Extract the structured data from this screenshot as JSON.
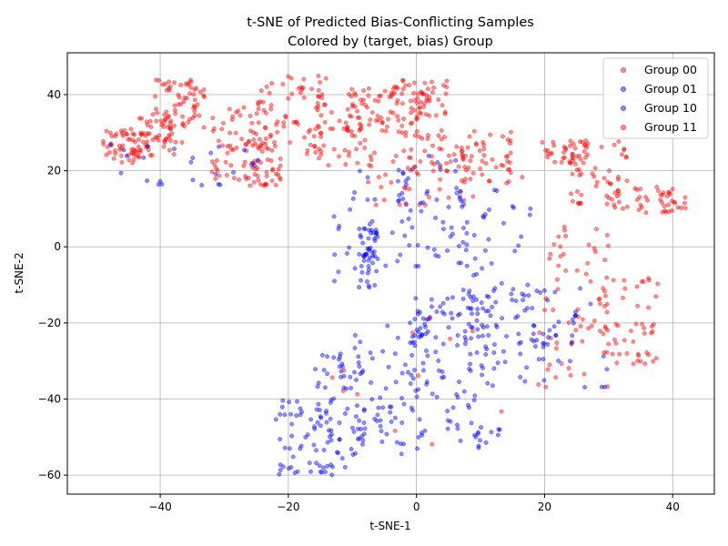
{
  "chart_data": {
    "type": "scatter",
    "title_line1": "t-SNE of Predicted Bias-Conflicting Samples",
    "title_line2": "Colored by (target, bias) Group",
    "xlabel": "t-SNE-1",
    "ylabel": "t-SNE-2",
    "xlim": [
      -54.5,
      46.5
    ],
    "ylim": [
      -65,
      51
    ],
    "xticks": [
      -40,
      -20,
      0,
      20,
      40
    ],
    "yticks": [
      -60,
      -40,
      -20,
      0,
      20,
      40
    ],
    "grid": true,
    "legend_position": "top-right",
    "point_alpha": 0.45,
    "series": [
      {
        "name": "Group 00",
        "color": "#ff0000"
      },
      {
        "name": "Group 01",
        "color": "#0000ff"
      },
      {
        "name": "Group 10",
        "color": "#0000ff"
      },
      {
        "name": "Group 11",
        "color": "#ff0000"
      }
    ],
    "clusters": [
      {
        "series": 0,
        "n": 55,
        "x": [
          -49,
          -42
        ],
        "y": [
          22,
          31
        ]
      },
      {
        "series": 0,
        "n": 50,
        "x": [
          -44,
          -36
        ],
        "y": [
          24,
          35
        ]
      },
      {
        "series": 0,
        "n": 60,
        "x": [
          -41,
          -33
        ],
        "y": [
          31,
          44
        ]
      },
      {
        "series": 0,
        "n": 55,
        "x": [
          -32,
          -24
        ],
        "y": [
          17,
          37
        ]
      },
      {
        "series": 0,
        "n": 45,
        "x": [
          -27,
          -21
        ],
        "y": [
          16,
          30
        ]
      },
      {
        "series": 0,
        "n": 70,
        "x": [
          -26,
          -14
        ],
        "y": [
          24,
          45
        ]
      },
      {
        "series": 0,
        "n": 45,
        "x": [
          -16,
          -6
        ],
        "y": [
          21,
          38
        ]
      },
      {
        "series": 0,
        "n": 70,
        "x": [
          -11,
          1
        ],
        "y": [
          30,
          43
        ]
      },
      {
        "series": 0,
        "n": 45,
        "x": [
          -4,
          5
        ],
        "y": [
          34,
          44
        ]
      },
      {
        "series": 0,
        "n": 40,
        "x": [
          -2,
          8
        ],
        "y": [
          19,
          31
        ]
      },
      {
        "series": 0,
        "n": 45,
        "x": [
          7,
          15
        ],
        "y": [
          16,
          31
        ]
      },
      {
        "series": 0,
        "n": 35,
        "x": [
          19,
          27
        ],
        "y": [
          22,
          28
        ]
      },
      {
        "series": 0,
        "n": 50,
        "x": [
          24,
          33
        ],
        "y": [
          11,
          28
        ]
      },
      {
        "series": 0,
        "n": 45,
        "x": [
          30,
          42
        ],
        "y": [
          9,
          16
        ]
      },
      {
        "series": 0,
        "n": 60,
        "x": [
          19,
          30
        ],
        "y": [
          -37,
          9
        ]
      },
      {
        "series": 0,
        "n": 55,
        "x": [
          28,
          38
        ],
        "y": [
          -31,
          -8
        ]
      },
      {
        "series": 0,
        "n": 25,
        "x": [
          -8,
          8
        ],
        "y": [
          11,
          23
        ]
      },
      {
        "series": 1,
        "n": 25,
        "x": [
          -49,
          -24
        ],
        "y": [
          16,
          27
        ]
      },
      {
        "series": 1,
        "n": 28,
        "x": [
          -13,
          -2
        ],
        "y": [
          -12,
          22
        ]
      },
      {
        "series": 1,
        "n": 45,
        "x": [
          -9,
          -6
        ],
        "y": [
          -11,
          7
        ]
      },
      {
        "series": 1,
        "n": 55,
        "x": [
          -3,
          8
        ],
        "y": [
          -8,
          24
        ]
      },
      {
        "series": 1,
        "n": 40,
        "x": [
          6,
          18
        ],
        "y": [
          -15,
          15
        ]
      },
      {
        "series": 1,
        "n": 35,
        "x": [
          -1,
          12
        ],
        "y": [
          -26,
          -13
        ]
      },
      {
        "series": 1,
        "n": 40,
        "x": [
          10,
          21
        ],
        "y": [
          -33,
          -10
        ]
      },
      {
        "series": 2,
        "n": 60,
        "x": [
          -22,
          -13
        ],
        "y": [
          -60,
          -40
        ]
      },
      {
        "series": 2,
        "n": 60,
        "x": [
          -16,
          -8
        ],
        "y": [
          -58,
          -28
        ]
      },
      {
        "series": 2,
        "n": 70,
        "x": [
          -10,
          2
        ],
        "y": [
          -55,
          -20
        ]
      },
      {
        "series": 2,
        "n": 60,
        "x": [
          -1,
          10
        ],
        "y": [
          -53,
          -14
        ]
      },
      {
        "series": 2,
        "n": 30,
        "x": [
          7,
          13
        ],
        "y": [
          -53,
          -20
        ]
      },
      {
        "series": 2,
        "n": 35,
        "x": [
          16,
          30
        ],
        "y": [
          -37,
          -9
        ]
      },
      {
        "series": 3,
        "n": 12,
        "x": [
          -14,
          14
        ],
        "y": [
          -52,
          -18
        ]
      },
      {
        "series": 3,
        "n": 10,
        "x": [
          -8,
          18
        ],
        "y": [
          3,
          24
        ]
      }
    ]
  }
}
